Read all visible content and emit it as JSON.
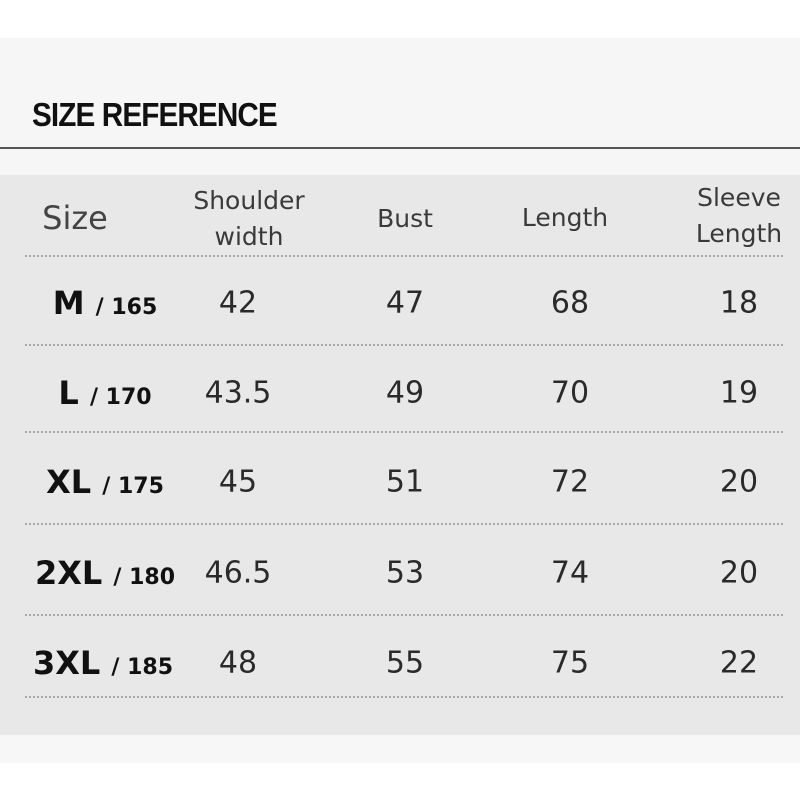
{
  "title": "SIZE REFERENCE",
  "headers": [
    "Size",
    "Shoulder width",
    "Bust",
    "Length",
    "Sleeve Length"
  ],
  "header_lines": {
    "shoulder": [
      "Shoulder",
      "width"
    ],
    "sleeve": [
      "Sleeve",
      "Length"
    ]
  },
  "rows": [
    {
      "size": "M",
      "height": "/ 165",
      "shoulder": "42",
      "bust": "47",
      "length": "68",
      "sleeve": "18"
    },
    {
      "size": "L",
      "height": "/ 170",
      "shoulder": "43.5",
      "bust": "49",
      "length": "70",
      "sleeve": "19"
    },
    {
      "size": "XL",
      "height": "/ 175",
      "shoulder": "45",
      "bust": "51",
      "length": "72",
      "sleeve": "20"
    },
    {
      "size": "2XL",
      "height": "/ 180",
      "shoulder": "46.5",
      "bust": "53",
      "length": "74",
      "sleeve": "20"
    },
    {
      "size": "3XL",
      "height": "/ 185",
      "shoulder": "48",
      "bust": "55",
      "length": "75",
      "sleeve": "22"
    }
  ]
}
